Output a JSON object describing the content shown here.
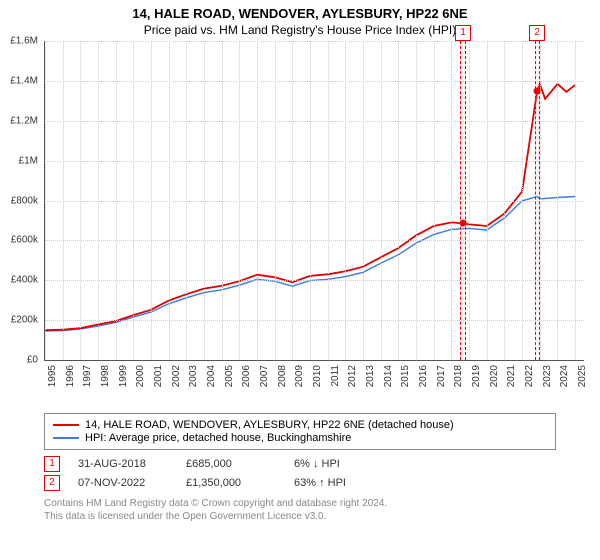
{
  "title": "14, HALE ROAD, WENDOVER, AYLESBURY, HP22 6NE",
  "subtitle": "Price paid vs. HM Land Registry's House Price Index (HPI)",
  "chart": {
    "type": "line",
    "xlim": [
      1995,
      2025.5
    ],
    "ylim": [
      0,
      1600000
    ],
    "y_ticks": [
      0,
      200000,
      400000,
      600000,
      800000,
      1000000,
      1200000,
      1400000,
      1600000
    ],
    "y_tick_labels": [
      "£0",
      "£200k",
      "£400k",
      "£600k",
      "£800k",
      "£1M",
      "£1.2M",
      "£1.4M",
      "£1.6M"
    ],
    "x_ticks": [
      1995,
      1996,
      1997,
      1998,
      1999,
      2000,
      2001,
      2002,
      2003,
      2004,
      2005,
      2006,
      2007,
      2008,
      2009,
      2010,
      2011,
      2012,
      2013,
      2014,
      2015,
      2016,
      2017,
      2018,
      2019,
      2020,
      2021,
      2022,
      2023,
      2024,
      2025
    ],
    "grid_color": "#cccccc",
    "background_color": "#ffffff",
    "axis_color": "#555555",
    "series": [
      {
        "id": "price_paid",
        "label": "14, HALE ROAD, WENDOVER, AYLESBURY, HP22 6NE (detached house)",
        "color": "#e00000",
        "line_width": 1.8,
        "points": [
          [
            1995,
            150000
          ],
          [
            1996,
            152000
          ],
          [
            1997,
            160000
          ],
          [
            1998,
            178000
          ],
          [
            1999,
            195000
          ],
          [
            2000,
            225000
          ],
          [
            2001,
            252000
          ],
          [
            2002,
            298000
          ],
          [
            2003,
            330000
          ],
          [
            2004,
            358000
          ],
          [
            2005,
            372000
          ],
          [
            2006,
            395000
          ],
          [
            2007,
            428000
          ],
          [
            2008,
            415000
          ],
          [
            2009,
            390000
          ],
          [
            2010,
            422000
          ],
          [
            2011,
            430000
          ],
          [
            2012,
            445000
          ],
          [
            2013,
            468000
          ],
          [
            2014,
            515000
          ],
          [
            2015,
            562000
          ],
          [
            2016,
            625000
          ],
          [
            2017,
            672000
          ],
          [
            2018,
            690000
          ],
          [
            2018.66,
            685000
          ],
          [
            2019,
            680000
          ],
          [
            2020,
            672000
          ],
          [
            2021,
            735000
          ],
          [
            2022,
            845000
          ],
          [
            2022.85,
            1350000
          ],
          [
            2023,
            1385000
          ],
          [
            2023.3,
            1310000
          ],
          [
            2024,
            1385000
          ],
          [
            2024.5,
            1345000
          ],
          [
            2025,
            1380000
          ]
        ]
      },
      {
        "id": "hpi",
        "label": "HPI: Average price, detached house, Buckinghamshire",
        "color": "#3b7dd8",
        "line_width": 1.4,
        "points": [
          [
            1995,
            145000
          ],
          [
            1996,
            148000
          ],
          [
            1997,
            155000
          ],
          [
            1998,
            170000
          ],
          [
            1999,
            188000
          ],
          [
            2000,
            215000
          ],
          [
            2001,
            240000
          ],
          [
            2002,
            282000
          ],
          [
            2003,
            312000
          ],
          [
            2004,
            338000
          ],
          [
            2005,
            352000
          ],
          [
            2006,
            375000
          ],
          [
            2007,
            405000
          ],
          [
            2008,
            395000
          ],
          [
            2009,
            370000
          ],
          [
            2010,
            398000
          ],
          [
            2011,
            405000
          ],
          [
            2012,
            418000
          ],
          [
            2013,
            440000
          ],
          [
            2014,
            485000
          ],
          [
            2015,
            528000
          ],
          [
            2016,
            586000
          ],
          [
            2017,
            630000
          ],
          [
            2018,
            655000
          ],
          [
            2019,
            660000
          ],
          [
            2020,
            652000
          ],
          [
            2021,
            712000
          ],
          [
            2022,
            798000
          ],
          [
            2022.85,
            820000
          ],
          [
            2023,
            808000
          ],
          [
            2024,
            815000
          ],
          [
            2025,
            820000
          ]
        ]
      }
    ],
    "markers": [
      {
        "idx": "1",
        "x": 2018.66,
        "y": 685000,
        "band_start": 2018.5,
        "band_end": 2018.82,
        "date": "31-AUG-2018",
        "price": "£685,000",
        "pct": "6%",
        "arrow": "↓",
        "rel": "HPI"
      },
      {
        "idx": "2",
        "x": 2022.85,
        "y": 1350000,
        "band_start": 2022.7,
        "band_end": 2023.0,
        "date": "07-NOV-2022",
        "price": "£1,350,000",
        "pct": "63%",
        "arrow": "↑",
        "rel": "HPI"
      }
    ],
    "marker_box_border": "#e00000",
    "marker_band_fill": "rgba(255,180,180,0.18)"
  },
  "legend": {
    "border": "#888888"
  },
  "footer": {
    "line1": "Contains HM Land Registry data © Crown copyright and database right 2024.",
    "line2": "This data is licensed under the Open Government Licence v3.0."
  }
}
